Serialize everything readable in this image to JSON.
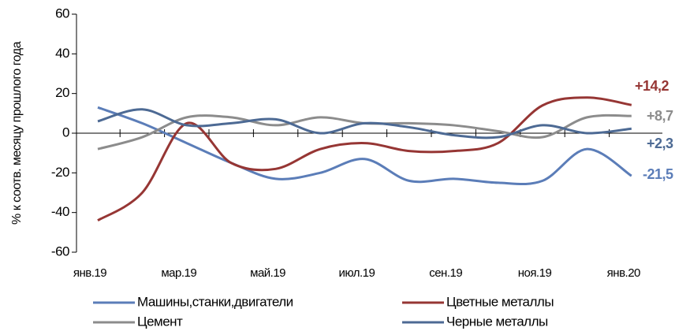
{
  "chart_data": {
    "type": "line",
    "y_label": "% к соотв. месяцу прошлого года",
    "categories": [
      "янв.19",
      null,
      "мар.19",
      null,
      "май.19",
      null,
      "июл.19",
      null,
      "сен.19",
      null,
      "ноя.19",
      null,
      "янв.20"
    ],
    "ylim": [
      -60,
      60
    ],
    "yticks": [
      -60,
      -40,
      -20,
      0,
      20,
      40,
      60
    ],
    "series": [
      {
        "name": "Машины,станки,двигатели",
        "color": "#5b7db8",
        "values": [
          13,
          5,
          -5,
          -15,
          -23,
          -20,
          -13,
          -24,
          -23,
          -25,
          -24,
          -8,
          -21.5
        ],
        "value_labels": [
          null,
          null,
          null,
          null,
          null,
          null,
          null,
          null,
          null,
          null,
          null,
          null,
          "-21,5"
        ]
      },
      {
        "name": "Цветные металлы",
        "color": "#963634",
        "values": [
          -44,
          -30,
          5,
          -15,
          -18,
          -8,
          -5,
          -9,
          -9,
          -5,
          14,
          18,
          14.2
        ],
        "value_labels": [
          null,
          null,
          null,
          null,
          null,
          null,
          null,
          null,
          null,
          null,
          null,
          null,
          "+14,2"
        ]
      },
      {
        "name": "Цемент",
        "color": "#8c8c8c",
        "values": [
          -8,
          -2,
          8,
          8,
          4,
          8,
          5,
          5,
          4,
          1,
          -2,
          8,
          8.7
        ],
        "value_labels": [
          null,
          null,
          null,
          null,
          null,
          null,
          null,
          null,
          null,
          null,
          null,
          null,
          "+8,7"
        ]
      },
      {
        "name": "Черные металлы",
        "color": "#4d6a94",
        "values": [
          6,
          12,
          4,
          5,
          7,
          0,
          5,
          3,
          -1,
          -2,
          4,
          0,
          2.3
        ],
        "value_labels": [
          null,
          null,
          null,
          null,
          null,
          null,
          null,
          null,
          null,
          null,
          null,
          null,
          "+2,3"
        ]
      }
    ]
  }
}
